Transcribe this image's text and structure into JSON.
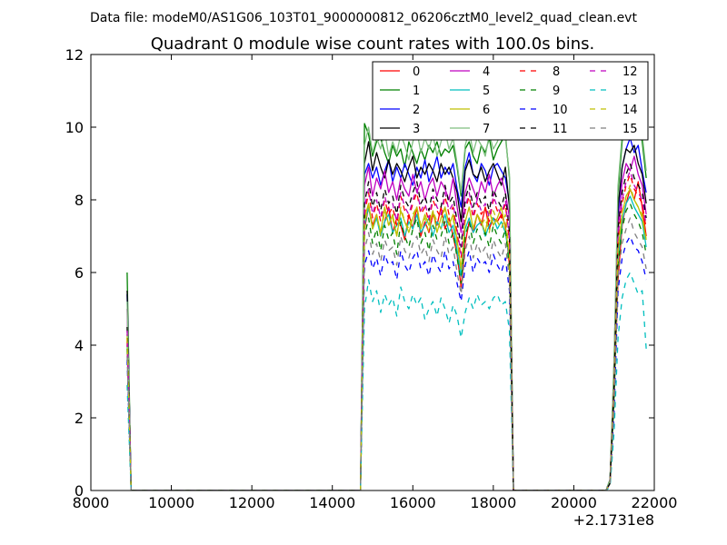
{
  "header": {
    "file_line": "Data file: modeM0/AS1G06_103T01_9000000812_06206cztM0_level2_quad_clean.evt",
    "title": "Quadrant 0 module wise count rates with 100.0s bins."
  },
  "axes": {
    "x_offset_label": "+2.1731e8",
    "x_ticks": [
      "8000",
      "10000",
      "12000",
      "14000",
      "16000",
      "18000",
      "20000",
      "22000"
    ],
    "y_ticks": [
      "0",
      "2",
      "4",
      "6",
      "8",
      "10",
      "12"
    ]
  },
  "chart_data": {
    "type": "line",
    "title": "Quadrant 0 module wise count rates with 100.0s bins.",
    "xlabel": "",
    "ylabel": "",
    "x_offset": 217310000,
    "xlim": [
      8000,
      22000
    ],
    "ylim": [
      0,
      12
    ],
    "grid": false,
    "legend_location": "upper right",
    "legend_columns": 4,
    "x": [
      8900,
      9000,
      9100,
      14700,
      14800,
      14900,
      15000,
      15100,
      15200,
      15300,
      15400,
      15500,
      15600,
      15700,
      15800,
      15900,
      16000,
      16100,
      16200,
      16300,
      16400,
      16500,
      16600,
      16700,
      16800,
      16900,
      17000,
      17100,
      17200,
      17300,
      17400,
      17500,
      17600,
      17700,
      17800,
      17900,
      18000,
      18100,
      18200,
      18300,
      18400,
      18500,
      18600,
      20800,
      20900,
      21000,
      21100,
      21200,
      21300,
      21400,
      21500,
      21600,
      21700,
      21800
    ],
    "series": [
      {
        "name": "0",
        "color": "#ff0000",
        "dash": "solid",
        "values": [
          4.2,
          0,
          0,
          0,
          7.2,
          7.8,
          7.3,
          7.6,
          7.0,
          7.4,
          7.8,
          7.1,
          7.5,
          7.3,
          6.9,
          7.6,
          7.2,
          7.8,
          7.0,
          7.4,
          7.1,
          7.6,
          7.3,
          7.8,
          7.2,
          7.5,
          7.0,
          6.5,
          5.6,
          6.8,
          7.4,
          7.1,
          7.6,
          7.3,
          7.8,
          7.2,
          7.5,
          7.4,
          7.6,
          7.3,
          6.2,
          0,
          0,
          0,
          0.2,
          2.5,
          5.8,
          7.3,
          7.9,
          8.3,
          8.0,
          8.5,
          7.8,
          7.0
        ]
      },
      {
        "name": "1",
        "color": "#008000",
        "dash": "solid",
        "values": [
          6.0,
          0,
          0,
          0,
          10.1,
          9.8,
          9.2,
          9.6,
          9.7,
          9.3,
          9.0,
          9.5,
          9.2,
          9.4,
          8.9,
          9.6,
          9.3,
          9.0,
          9.4,
          9.1,
          9.5,
          9.3,
          9.6,
          9.2,
          9.4,
          9.3,
          9.5,
          8.9,
          8.1,
          9.4,
          9.6,
          9.2,
          9.0,
          9.5,
          9.3,
          9.7,
          9.1,
          9.4,
          9.6,
          9.8,
          8.6,
          0,
          0,
          0,
          0.3,
          3.5,
          8.2,
          9.6,
          10.5,
          10.2,
          10.7,
          10.1,
          9.6,
          8.6
        ]
      },
      {
        "name": "2",
        "color": "#0000ff",
        "dash": "solid",
        "values": [
          5.4,
          0,
          0,
          0,
          8.7,
          9.0,
          8.6,
          8.9,
          8.4,
          8.8,
          9.1,
          8.5,
          8.9,
          8.6,
          9.0,
          8.7,
          8.4,
          8.9,
          8.6,
          9.1,
          8.5,
          8.8,
          9.2,
          8.6,
          8.9,
          8.7,
          9.0,
          8.3,
          7.8,
          8.9,
          9.3,
          8.7,
          8.5,
          9.0,
          8.8,
          8.4,
          8.9,
          9.0,
          8.8,
          8.6,
          7.9,
          0,
          0,
          0,
          0.2,
          3.2,
          7.6,
          8.9,
          9.4,
          9.7,
          9.3,
          9.5,
          8.8,
          8.2
        ]
      },
      {
        "name": "3",
        "color": "#000000",
        "dash": "solid",
        "values": [
          5.5,
          0,
          0,
          0,
          9.0,
          9.6,
          8.8,
          9.3,
          8.9,
          8.6,
          9.1,
          8.7,
          9.0,
          8.8,
          8.5,
          8.9,
          9.2,
          8.6,
          8.9,
          8.7,
          9.0,
          8.8,
          8.5,
          9.0,
          8.7,
          8.9,
          8.6,
          8.2,
          7.4,
          8.8,
          9.1,
          8.7,
          8.6,
          8.9,
          8.5,
          8.8,
          9.0,
          8.7,
          8.4,
          8.9,
          7.8,
          0,
          0,
          0,
          0.3,
          3.1,
          7.8,
          8.9,
          9.4,
          9.3,
          9.5,
          9.0,
          8.7,
          7.9
        ]
      },
      {
        "name": "4",
        "color": "#bf00bf",
        "dash": "solid",
        "values": [
          5.0,
          0,
          0,
          0,
          8.4,
          8.9,
          8.1,
          8.6,
          8.3,
          8.8,
          8.2,
          8.5,
          8.0,
          8.6,
          8.3,
          8.1,
          8.7,
          8.2,
          8.5,
          8.0,
          8.4,
          8.6,
          8.1,
          8.5,
          8.3,
          8.0,
          8.6,
          7.8,
          7.1,
          8.2,
          8.6,
          8.3,
          8.0,
          8.5,
          8.2,
          8.7,
          8.1,
          8.4,
          8.6,
          8.2,
          7.5,
          0,
          0,
          0,
          0.2,
          2.9,
          7.2,
          8.5,
          9.0,
          8.8,
          9.2,
          8.7,
          8.4,
          7.6
        ]
      },
      {
        "name": "5",
        "color": "#00bfbf",
        "dash": "solid",
        "values": [
          4.0,
          0,
          0,
          0,
          7.3,
          7.8,
          7.2,
          7.5,
          7.0,
          7.4,
          7.6,
          7.1,
          7.3,
          7.5,
          7.0,
          7.4,
          7.2,
          7.6,
          7.1,
          7.3,
          7.5,
          7.0,
          7.4,
          7.2,
          7.6,
          7.1,
          7.3,
          6.6,
          5.9,
          7.2,
          7.5,
          7.1,
          7.3,
          7.4,
          7.0,
          7.3,
          7.5,
          7.2,
          7.4,
          7.1,
          6.4,
          0,
          0,
          0,
          0.2,
          2.4,
          6.3,
          7.4,
          7.9,
          8.1,
          7.8,
          7.6,
          7.4,
          6.7
        ]
      },
      {
        "name": "6",
        "color": "#bfbf00",
        "dash": "solid",
        "values": [
          4.3,
          0,
          0,
          0,
          7.5,
          7.9,
          7.2,
          7.6,
          7.1,
          7.8,
          7.3,
          7.6,
          7.0,
          7.7,
          7.4,
          7.1,
          7.5,
          7.8,
          7.2,
          7.6,
          7.3,
          7.7,
          7.1,
          7.5,
          7.8,
          7.3,
          7.6,
          6.9,
          6.1,
          7.4,
          7.8,
          7.2,
          7.6,
          7.4,
          7.1,
          7.7,
          7.3,
          7.5,
          7.8,
          7.2,
          6.5,
          0,
          0,
          0,
          0.2,
          2.6,
          6.6,
          7.6,
          8.1,
          8.3,
          8.0,
          7.8,
          7.5,
          6.9
        ]
      },
      {
        "name": "7",
        "color": "#7fbf7f",
        "dash": "solid",
        "values": [
          5.2,
          0,
          0,
          0,
          9.5,
          10.0,
          9.3,
          9.7,
          9.4,
          9.9,
          9.2,
          9.6,
          9.3,
          9.8,
          9.5,
          9.1,
          9.6,
          9.9,
          9.3,
          9.7,
          9.4,
          9.8,
          9.2,
          9.6,
          9.9,
          9.4,
          9.7,
          9.0,
          8.2,
          9.5,
          9.9,
          9.3,
          9.7,
          9.5,
          9.2,
          9.8,
          9.4,
          9.6,
          9.9,
          9.7,
          8.7,
          0,
          0,
          0,
          0.3,
          3.6,
          8.4,
          9.8,
          10.3,
          11.0,
          10.4,
          10.2,
          9.8,
          8.8
        ]
      },
      {
        "name": "8",
        "color": "#ff0000",
        "dash": "dashed",
        "values": [
          4.1,
          0,
          0,
          0,
          7.6,
          8.2,
          7.5,
          7.9,
          7.4,
          8.0,
          7.6,
          7.8,
          7.3,
          8.1,
          7.7,
          7.5,
          7.9,
          8.2,
          7.6,
          7.8,
          7.4,
          8.0,
          7.7,
          7.5,
          8.1,
          7.6,
          7.8,
          7.1,
          6.4,
          7.7,
          8.1,
          7.5,
          7.9,
          7.6,
          7.8,
          7.4,
          8.0,
          7.7,
          7.5,
          7.9,
          6.8,
          0,
          0,
          0,
          0.2,
          2.8,
          6.9,
          7.9,
          8.4,
          8.7,
          8.3,
          8.1,
          7.9,
          7.2
        ]
      },
      {
        "name": "9",
        "color": "#008000",
        "dash": "dashed",
        "values": [
          3.9,
          0,
          0,
          0,
          7.0,
          7.5,
          6.8,
          7.2,
          6.6,
          7.3,
          6.9,
          7.1,
          6.5,
          7.4,
          7.0,
          6.7,
          7.2,
          7.5,
          6.8,
          7.1,
          6.6,
          7.3,
          6.9,
          7.0,
          7.4,
          6.8,
          7.1,
          6.4,
          5.7,
          7.0,
          7.4,
          6.8,
          7.2,
          6.9,
          7.1,
          6.7,
          7.3,
          7.0,
          6.8,
          7.2,
          6.1,
          0,
          0,
          0,
          0.2,
          2.4,
          6.2,
          7.2,
          7.7,
          7.9,
          7.6,
          7.4,
          7.1,
          6.5
        ]
      },
      {
        "name": "10",
        "color": "#0000ff",
        "dash": "dashed",
        "values": [
          3.6,
          0,
          0,
          0,
          6.2,
          6.6,
          6.1,
          6.4,
          5.9,
          6.5,
          6.2,
          6.3,
          5.8,
          6.6,
          6.2,
          6.0,
          6.4,
          6.6,
          6.1,
          6.3,
          5.9,
          6.5,
          6.2,
          6.0,
          6.6,
          6.1,
          6.3,
          5.7,
          5.2,
          6.2,
          6.6,
          6.0,
          6.4,
          6.2,
          6.3,
          6.0,
          6.5,
          6.2,
          6.0,
          6.4,
          5.5,
          0,
          0,
          0,
          0.2,
          2.1,
          5.5,
          6.4,
          6.8,
          7.0,
          6.7,
          6.6,
          6.3,
          5.8
        ]
      },
      {
        "name": "11",
        "color": "#000000",
        "dash": "dashed",
        "values": [
          4.5,
          0,
          0,
          0,
          7.9,
          8.5,
          7.8,
          8.2,
          7.7,
          8.3,
          7.9,
          8.1,
          7.6,
          8.4,
          8.0,
          7.8,
          8.2,
          8.5,
          7.9,
          8.1,
          7.7,
          8.3,
          8.0,
          7.8,
          8.4,
          7.9,
          8.1,
          7.4,
          6.7,
          8.0,
          8.4,
          7.8,
          8.2,
          7.9,
          8.1,
          7.7,
          8.3,
          8.0,
          7.8,
          8.2,
          7.1,
          0,
          0,
          0,
          0.2,
          2.9,
          7.2,
          8.2,
          8.7,
          9.0,
          8.6,
          8.4,
          8.2,
          7.5
        ]
      },
      {
        "name": "12",
        "color": "#bf00bf",
        "dash": "dashed",
        "values": [
          4.4,
          0,
          0,
          0,
          7.8,
          8.3,
          7.6,
          8.0,
          7.5,
          8.1,
          7.7,
          7.9,
          7.4,
          8.2,
          7.8,
          7.6,
          8.0,
          8.3,
          7.7,
          7.9,
          7.5,
          8.1,
          7.8,
          7.6,
          8.2,
          7.7,
          7.9,
          7.2,
          6.5,
          7.8,
          8.2,
          7.6,
          8.0,
          7.7,
          7.9,
          7.5,
          8.1,
          7.8,
          7.6,
          8.0,
          6.9,
          0,
          0,
          0,
          0.2,
          2.8,
          7.0,
          8.0,
          8.5,
          8.8,
          8.4,
          8.2,
          8.0,
          7.3
        ]
      },
      {
        "name": "13",
        "color": "#00bfbf",
        "dash": "dashed",
        "values": [
          2.9,
          0,
          0,
          0,
          5.0,
          5.8,
          5.2,
          5.5,
          4.9,
          5.4,
          5.1,
          5.3,
          4.8,
          5.6,
          5.2,
          5.0,
          5.4,
          5.1,
          5.3,
          4.7,
          5.0,
          5.2,
          4.8,
          5.3,
          5.0,
          4.6,
          5.1,
          4.8,
          4.2,
          4.9,
          5.3,
          5.0,
          5.4,
          5.1,
          5.2,
          5.0,
          5.3,
          5.4,
          5.1,
          5.2,
          4.4,
          0,
          0,
          0,
          0.1,
          1.6,
          4.2,
          5.3,
          5.8,
          6.0,
          5.7,
          5.4,
          5.5,
          3.9
        ]
      },
      {
        "name": "14",
        "color": "#bfbf00",
        "dash": "dashed",
        "values": [
          4.2,
          0,
          0,
          0,
          7.4,
          7.8,
          7.2,
          7.6,
          7.0,
          7.7,
          7.3,
          7.5,
          7.0,
          7.8,
          7.4,
          7.2,
          7.6,
          7.8,
          7.3,
          7.5,
          7.1,
          7.7,
          7.4,
          7.2,
          7.8,
          7.3,
          7.5,
          6.8,
          6.1,
          7.4,
          7.8,
          7.2,
          7.6,
          7.3,
          7.5,
          7.1,
          7.7,
          7.4,
          7.2,
          7.6,
          6.5,
          0,
          0,
          0,
          0.2,
          2.6,
          6.7,
          7.6,
          8.1,
          8.4,
          8.0,
          7.8,
          7.6,
          6.9
        ]
      },
      {
        "name": "15",
        "color": "#7f7f7f",
        "dash": "dashed",
        "values": [
          3.7,
          0,
          0,
          0,
          6.6,
          7.1,
          6.5,
          6.8,
          6.3,
          6.9,
          6.6,
          6.7,
          6.2,
          7.0,
          6.6,
          6.4,
          6.8,
          7.0,
          6.5,
          6.7,
          6.3,
          6.9,
          6.6,
          6.4,
          7.0,
          6.5,
          6.7,
          6.0,
          5.4,
          6.6,
          7.0,
          6.4,
          6.8,
          6.5,
          6.7,
          6.3,
          6.9,
          6.6,
          6.4,
          6.8,
          5.8,
          0,
          0,
          0,
          0.2,
          2.3,
          5.9,
          6.8,
          7.2,
          7.5,
          7.1,
          6.9,
          6.7,
          6.1
        ]
      }
    ]
  }
}
